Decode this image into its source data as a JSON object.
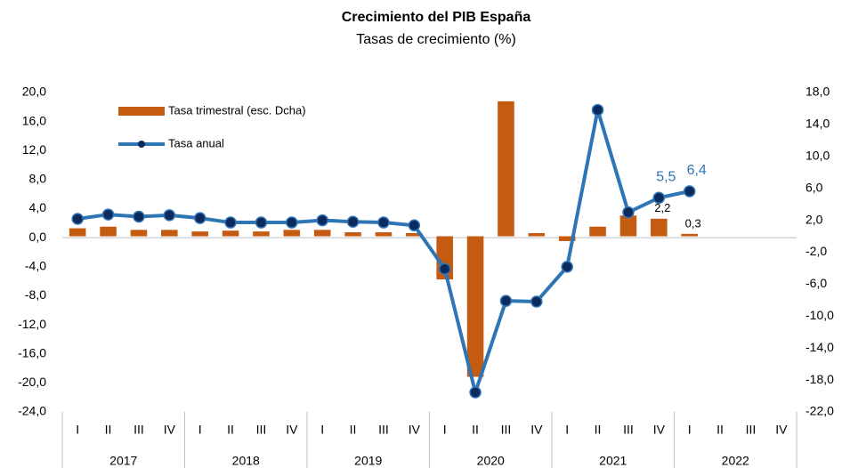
{
  "chart_data": {
    "type": "bar_line",
    "title": "Crecimiento del PIB España",
    "subtitle": "Tasas de crecimiento (%)",
    "categories": [
      "I",
      "II",
      "III",
      "IV",
      "I",
      "II",
      "III",
      "IV",
      "I",
      "II",
      "III",
      "IV",
      "I",
      "II",
      "III",
      "IV",
      "I",
      "II",
      "III",
      "IV",
      "I",
      "II",
      "III",
      "IV"
    ],
    "years": [
      "2017",
      "2018",
      "2019",
      "2020",
      "2021",
      "2022"
    ],
    "series": [
      {
        "name": "Tasa trimestral (esc. Dcha)",
        "type": "bar",
        "axis": "y2",
        "color": "#c55a11",
        "values": [
          1.0,
          1.2,
          0.8,
          0.8,
          0.6,
          0.7,
          0.6,
          0.8,
          0.8,
          0.5,
          0.5,
          0.4,
          -5.4,
          -17.6,
          16.9,
          0.4,
          -0.6,
          1.2,
          2.6,
          2.2,
          0.3,
          null,
          null,
          null
        ],
        "value_labels": [
          null,
          null,
          null,
          null,
          null,
          null,
          null,
          null,
          null,
          null,
          null,
          null,
          null,
          null,
          null,
          null,
          null,
          null,
          null,
          "2,2",
          "0,3",
          null,
          null,
          null
        ]
      },
      {
        "name": "Tasa anual",
        "type": "line",
        "axis": "y",
        "color": "#2e75b6",
        "marker_color": "#0d2a5c",
        "values": [
          2.6,
          3.2,
          2.9,
          3.1,
          2.7,
          2.1,
          2.1,
          2.1,
          2.4,
          2.2,
          2.1,
          1.7,
          -4.3,
          -21.3,
          -8.7,
          -8.8,
          -4.0,
          17.6,
          3.5,
          5.5,
          6.4,
          null,
          null,
          null
        ],
        "value_labels": [
          null,
          null,
          null,
          null,
          null,
          null,
          null,
          null,
          null,
          null,
          null,
          null,
          null,
          null,
          null,
          null,
          null,
          null,
          null,
          "5,5",
          "6,4",
          null,
          null,
          null
        ]
      }
    ],
    "ylim": [
      -24,
      20
    ],
    "yticks": [
      {
        "value": -24,
        "label": "-24,0"
      },
      {
        "value": -20,
        "label": "-20,0"
      },
      {
        "value": -16,
        "label": "-16,0"
      },
      {
        "value": -12,
        "label": "-12,0"
      },
      {
        "value": -8,
        "label": "-8,0"
      },
      {
        "value": -4,
        "label": "-4,0"
      },
      {
        "value": 0,
        "label": "0,0"
      },
      {
        "value": 4,
        "label": "4,0"
      },
      {
        "value": 8,
        "label": "8,0"
      },
      {
        "value": 12,
        "label": "12,0"
      },
      {
        "value": 16,
        "label": "16,0"
      },
      {
        "value": 20,
        "label": "20,0"
      }
    ],
    "y2lim": [
      -22,
      18
    ],
    "y2ticks": [
      {
        "value": -22,
        "label": "-22,0"
      },
      {
        "value": -18,
        "label": "-18,0"
      },
      {
        "value": -14,
        "label": "-14,0"
      },
      {
        "value": -10,
        "label": "-10,0"
      },
      {
        "value": -6,
        "label": "-6,0"
      },
      {
        "value": -2,
        "label": "-2,0"
      },
      {
        "value": 2,
        "label": "2,0"
      },
      {
        "value": 6,
        "label": "6,0"
      },
      {
        "value": 10,
        "label": "10,0"
      },
      {
        "value": 14,
        "label": "14,0"
      },
      {
        "value": 18,
        "label": "18,0"
      }
    ],
    "legend": "upper left",
    "grid": false
  }
}
